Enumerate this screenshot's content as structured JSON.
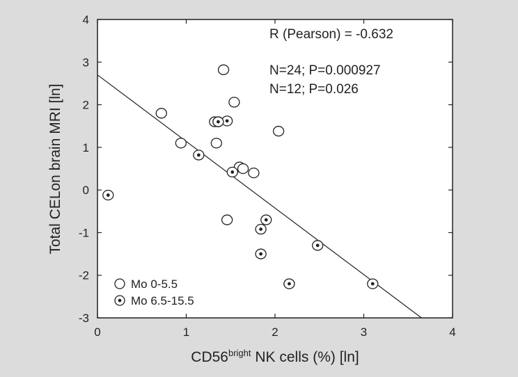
{
  "chart_data": {
    "type": "scatter",
    "xlabel_main": "CD56",
    "xlabel_sup": "bright",
    "xlabel_rest": " NK cells (%)  [ln]",
    "ylabel": "Total CELon brain MRI [ln]",
    "xlim": [
      0,
      4
    ],
    "ylim": [
      -3,
      4
    ],
    "xticks": [
      "0",
      "1",
      "2",
      "3",
      "4"
    ],
    "yticks": [
      "4",
      "3",
      "2",
      "1",
      "0",
      "-1",
      "-2",
      "-3"
    ],
    "annotations": [
      "R (Pearson) = -0.632",
      "N=24; P=0.000927",
      "N=12; P=0.026"
    ],
    "legend": {
      "position": "bottom-left",
      "entries": [
        "Mo 0-5.5",
        "Mo 6.5-15.5"
      ]
    },
    "series": [
      {
        "name": "Mo 0-5.5",
        "marker": "open-circle",
        "points": [
          [
            0.72,
            1.8
          ],
          [
            0.94,
            1.1
          ],
          [
            1.32,
            1.6
          ],
          [
            1.36,
            1.6
          ],
          [
            1.34,
            1.1
          ],
          [
            1.42,
            2.82
          ],
          [
            1.54,
            2.06
          ],
          [
            1.6,
            0.54
          ],
          [
            1.64,
            0.5
          ],
          [
            1.76,
            0.4
          ],
          [
            2.04,
            1.38
          ],
          [
            1.46,
            -0.7
          ]
        ]
      },
      {
        "name": "Mo 6.5-15.5",
        "marker": "dotted-circle",
        "points": [
          [
            0.12,
            -0.12
          ],
          [
            1.14,
            0.82
          ],
          [
            1.46,
            1.62
          ],
          [
            1.52,
            0.42
          ],
          [
            1.84,
            -0.92
          ],
          [
            1.9,
            -0.7
          ],
          [
            1.84,
            -1.5
          ],
          [
            2.16,
            -2.2
          ],
          [
            2.48,
            -1.3
          ],
          [
            3.1,
            -2.2
          ],
          [
            1.36,
            1.6
          ],
          [
            2.16,
            -2.2
          ]
        ]
      }
    ],
    "regression_line": {
      "x": [
        0,
        3.65
      ],
      "y": [
        2.7,
        -3.0
      ]
    }
  }
}
